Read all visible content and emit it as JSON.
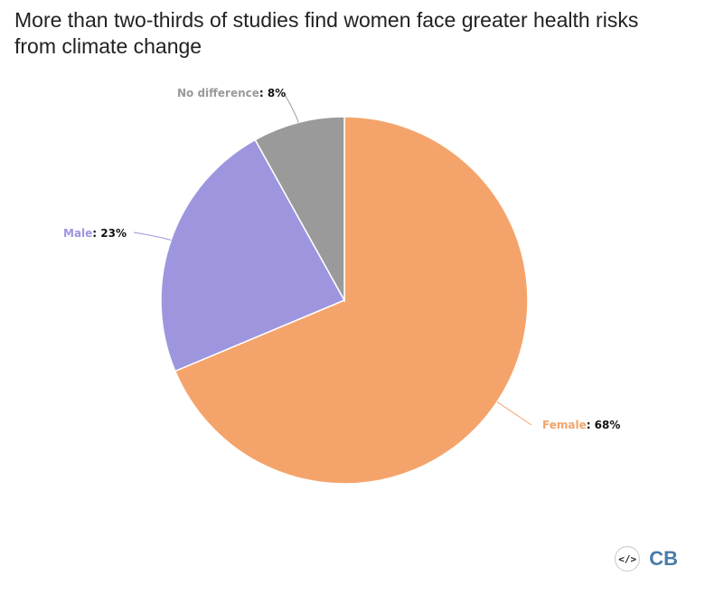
{
  "chart_data": {
    "type": "pie",
    "title": "More than two-thirds of studies find women face greater health risks from climate change",
    "start_angle_deg": 0,
    "direction": "clockwise",
    "slices": [
      {
        "name": "Female",
        "value": 68,
        "label": "68%",
        "color": "#f4a46b"
      },
      {
        "name": "Male",
        "value": 23,
        "label": "23%",
        "color": "#9d96df"
      },
      {
        "name": "No difference",
        "value": 8,
        "label": "8%",
        "color": "#9a9a9a"
      }
    ],
    "label_value_color": "#111111"
  },
  "embed": {
    "icon": "code-embed-icon",
    "glyph": "</>"
  },
  "brand": {
    "logo_text": "CB",
    "color": "#4a7ba7"
  }
}
